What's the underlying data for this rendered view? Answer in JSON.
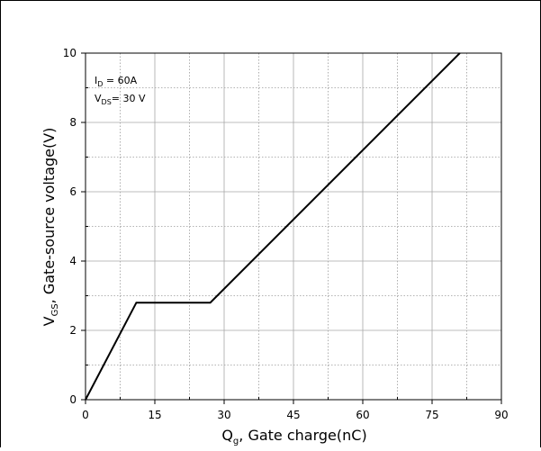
{
  "chart_data": {
    "type": "line",
    "title": "",
    "xlabel": {
      "main": "Q",
      "sub": "g",
      "rest": ", Gate charge(nC)"
    },
    "ylabel": {
      "main": "V",
      "sub": "GS",
      "rest": ", Gate-source voltage(V)"
    },
    "xlim": [
      0,
      90
    ],
    "ylim": [
      0,
      10
    ],
    "x_major_ticks": [
      0,
      15,
      30,
      45,
      60,
      75,
      90
    ],
    "x_tick_labels": [
      "0",
      "15",
      "30",
      "45",
      "60",
      "75",
      "90"
    ],
    "y_major_ticks": [
      0,
      2,
      4,
      6,
      8,
      10
    ],
    "y_tick_labels": [
      "0",
      "2",
      "4",
      "6",
      "8",
      "10"
    ],
    "x_minor_step": 7.5,
    "y_minor_step": 1,
    "grid": true,
    "annotations": [
      {
        "main": "I",
        "sub": "D",
        "rest": " = 60A"
      },
      {
        "main": "V",
        "sub": "DS",
        "rest": "= 30 V"
      }
    ],
    "series": [
      {
        "x": [
          0,
          11,
          27,
          81
        ],
        "y": [
          0,
          2.8,
          2.8,
          10
        ]
      }
    ]
  }
}
